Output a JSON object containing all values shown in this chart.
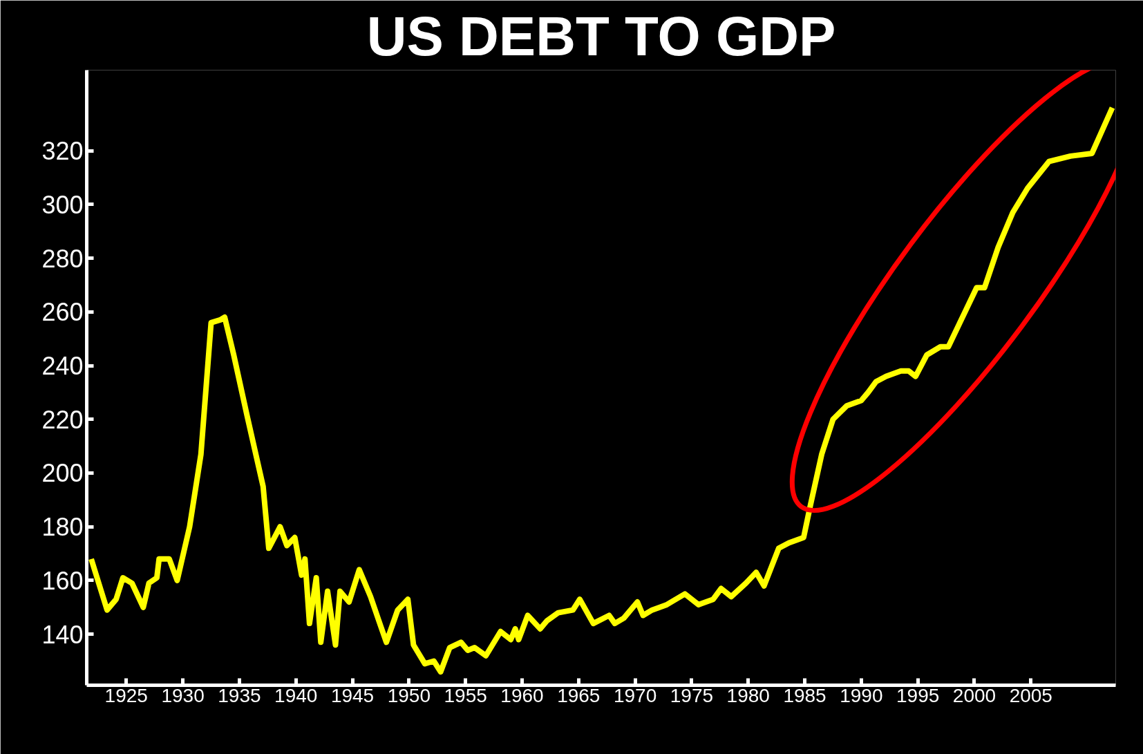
{
  "chart_data": {
    "type": "line",
    "title": "US DEBT TO GDP",
    "x": [
      1921.9,
      1923.3,
      1924.1,
      1924.7,
      1925.5,
      1926.5,
      1927,
      1927.7,
      1927.9,
      1928.8,
      1929.5,
      1930.6,
      1931.6,
      1932.5,
      1933.3,
      1933.7,
      1934.5,
      1935.7,
      1937.1,
      1937.6,
      1938.6,
      1939.2,
      1939.9,
      1940.5,
      1940.8,
      1941.2,
      1941.8,
      1942.2,
      1942.8,
      1943.5,
      1943.9,
      1944.7,
      1945.6,
      1946.6,
      1947.5,
      1948,
      1949,
      1949.9,
      1950.4,
      1951.4,
      1952.2,
      1952.8,
      1953.6,
      1954.6,
      1955.2,
      1955.8,
      1956.8,
      1958.1,
      1959,
      1959.4,
      1959.7,
      1960.5,
      1961.6,
      1962.2,
      1963.2,
      1964.5,
      1965.1,
      1966.3,
      1967.7,
      1968.2,
      1969,
      1970.2,
      1970.7,
      1971.5,
      1972.8,
      1974.4,
      1975.6,
      1976.9,
      1977.6,
      1978.5,
      1979.8,
      1980.7,
      1981.4,
      1982.7,
      1983.6,
      1984.9,
      1985.5,
      1986.5,
      1987.5,
      1988.7,
      1990,
      1990.6,
      1991.3,
      1992.2,
      1993.5,
      1994.2,
      1994.8,
      1995.8,
      1997,
      1997.7,
      2000.2,
      2000.9,
      2002.1,
      2003.4,
      2004.7,
      2006.6,
      2008.5,
      2010.4,
      2012.2
    ],
    "series": [
      {
        "color": "#ffff00",
        "values": [
          168,
          149,
          153,
          161,
          159,
          150,
          159,
          161,
          168,
          168,
          160,
          180,
          207,
          256,
          257,
          258,
          244,
          221,
          195,
          172,
          180,
          173,
          176,
          162,
          168,
          144,
          161,
          137,
          156,
          136,
          156,
          152,
          164,
          154,
          143,
          137,
          149,
          153,
          136,
          129,
          130,
          126,
          135,
          137,
          134,
          135,
          132,
          141,
          138,
          142,
          138,
          147,
          142,
          145,
          148,
          149,
          153,
          144,
          147,
          144,
          146,
          152,
          147,
          149,
          151,
          155,
          151,
          153,
          157,
          154,
          159,
          163,
          158,
          172,
          174,
          176,
          188,
          207,
          220,
          225,
          227,
          230,
          234,
          236,
          238,
          238,
          236,
          244,
          247,
          247,
          269,
          269,
          284,
          297,
          306,
          316,
          318,
          319,
          336
        ]
      }
    ],
    "xlim": [
      1921.5,
      2012.5
    ],
    "ylim": [
      121,
      350
    ],
    "xticks": [
      1925,
      1930,
      1935,
      1940,
      1945,
      1950,
      1955,
      1960,
      1965,
      1970,
      1975,
      1980,
      1985,
      1990,
      1995,
      2000,
      2005
    ],
    "yticks": [
      140,
      160,
      180,
      200,
      220,
      240,
      260,
      280,
      300,
      320
    ],
    "grid": false,
    "marker": "none",
    "line_style": "solid"
  }
}
